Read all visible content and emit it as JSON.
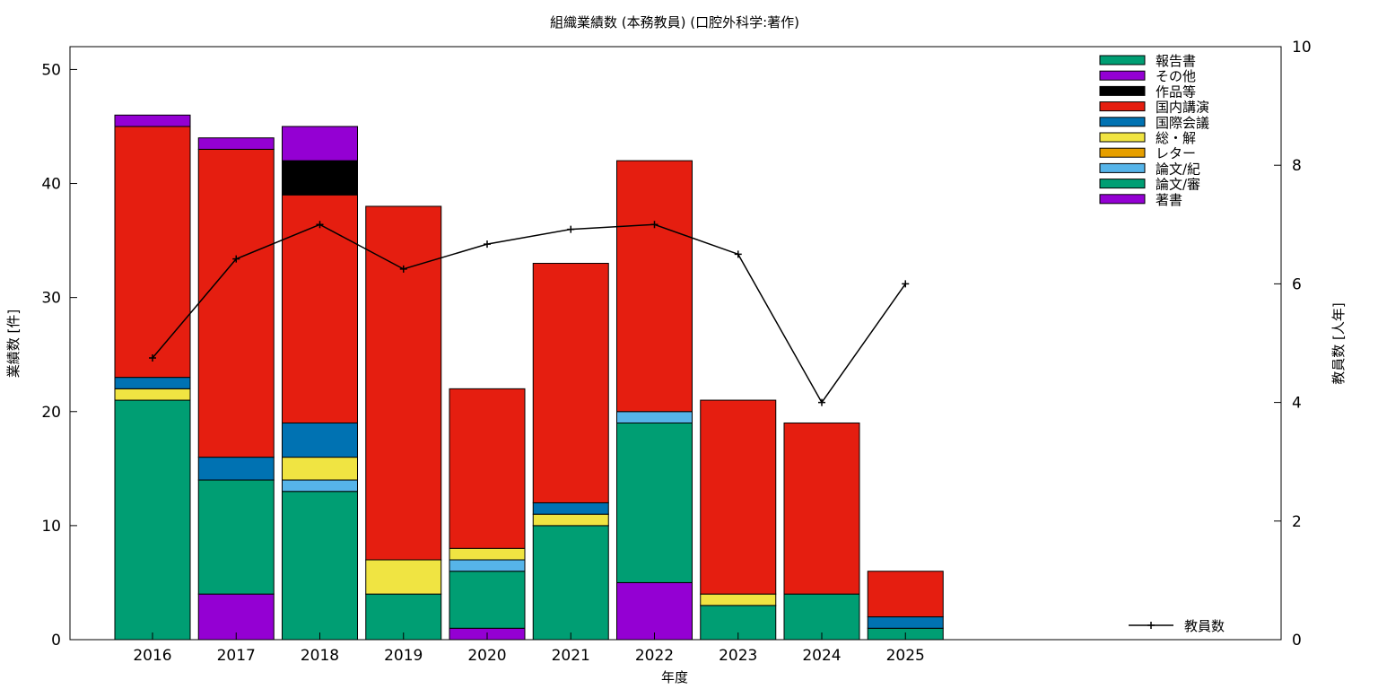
{
  "chart_data": {
    "type": "bar",
    "stacked": true,
    "title": "組織業績数 (本務教員) (口腔外科学:著作)",
    "xlabel": "年度",
    "ylabel": "業績数 [件]",
    "y2label": "教員数 [人年]",
    "categories": [
      "2016",
      "2017",
      "2018",
      "2019",
      "2020",
      "2021",
      "2022",
      "2023",
      "2024",
      "2025"
    ],
    "ylim": [
      0,
      52
    ],
    "yticks": [
      0,
      10,
      20,
      30,
      40,
      50
    ],
    "y2lim": [
      0,
      10
    ],
    "y2ticks": [
      0,
      2,
      4,
      6,
      8,
      10
    ],
    "grid": false,
    "legend_position": "top-right",
    "series": [
      {
        "name": "著書",
        "color": "#9400d3",
        "values": [
          0,
          4,
          0,
          0,
          1,
          0,
          5,
          0,
          0,
          0
        ]
      },
      {
        "name": "論文/審",
        "color": "#009e73",
        "values": [
          21,
          10,
          13,
          4,
          5,
          10,
          14,
          3,
          4,
          1
        ]
      },
      {
        "name": "論文/紀",
        "color": "#56b4e9",
        "values": [
          0,
          0,
          1,
          0,
          1,
          0,
          1,
          0,
          0,
          0
        ]
      },
      {
        "name": "レター",
        "color": "#e69f00",
        "values": [
          0,
          0,
          0,
          0,
          0,
          0,
          0,
          0,
          0,
          0
        ]
      },
      {
        "name": "総・解",
        "color": "#f0e442",
        "values": [
          1,
          0,
          2,
          3,
          1,
          1,
          0,
          1,
          0,
          0
        ]
      },
      {
        "name": "国際会議",
        "color": "#0072b2",
        "values": [
          1,
          2,
          3,
          0,
          0,
          1,
          0,
          0,
          0,
          1
        ]
      },
      {
        "name": "国内講演",
        "color": "#e51e10",
        "values": [
          22,
          27,
          20,
          31,
          14,
          21,
          22,
          17,
          15,
          4
        ]
      },
      {
        "name": "作品等",
        "color": "#000000",
        "values": [
          0,
          0,
          3,
          0,
          0,
          0,
          0,
          0,
          0,
          0
        ]
      },
      {
        "name": "その他",
        "color": "#9400d3",
        "values": [
          1,
          1,
          3,
          0,
          0,
          0,
          0,
          0,
          0,
          0
        ]
      },
      {
        "name": "報告書",
        "color": "#009e73",
        "values": [
          0,
          0,
          0,
          0,
          0,
          0,
          0,
          0,
          0,
          0
        ]
      }
    ],
    "line_series": {
      "name": "教員数",
      "color": "#000000",
      "axis": "y2",
      "values": [
        4.75,
        6.42,
        7.0,
        6.25,
        6.67,
        6.92,
        7.0,
        6.5,
        4.0,
        6.0
      ]
    }
  }
}
